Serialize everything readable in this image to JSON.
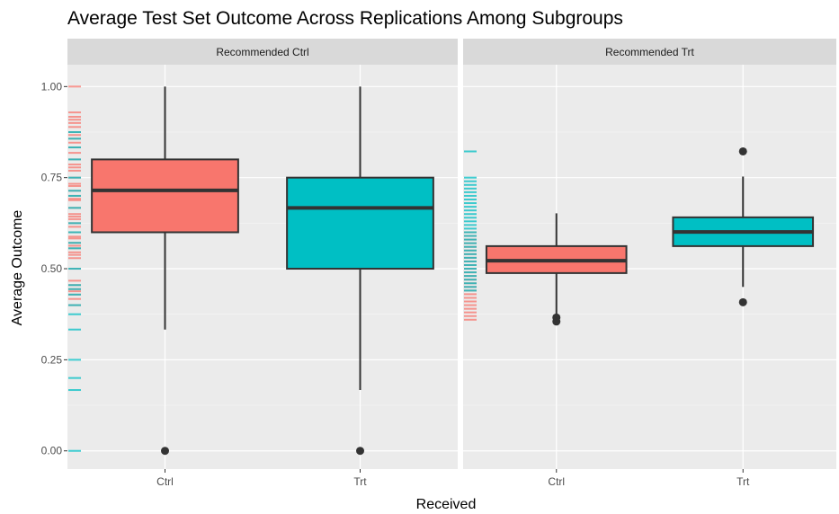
{
  "chart_data": {
    "type": "boxplot",
    "title": "Average Test Set Outcome Across Replications Among Subgroups",
    "xlabel": "Received",
    "ylabel": "Average Outcome",
    "ylim": [
      -0.05,
      1.06
    ],
    "yticks": [
      0.0,
      0.25,
      0.5,
      0.75,
      1.0
    ],
    "ytick_labels": [
      "0.00",
      "0.25",
      "0.50",
      "0.75",
      "1.00"
    ],
    "categories": [
      "Ctrl",
      "Trt"
    ],
    "grid": true,
    "colors": {
      "Ctrl": "#f8766d",
      "Trt": "#00bfc4",
      "panel_bg": "#ebebeb",
      "strip_bg": "#d9d9d9"
    },
    "facets": [
      {
        "label": "Recommended Ctrl",
        "boxes": [
          {
            "category": "Ctrl",
            "min": 0.333,
            "q1": 0.6,
            "median": 0.715,
            "q3": 0.8,
            "max": 1.0,
            "outliers": [
              0.0
            ]
          },
          {
            "category": "Trt",
            "min": 0.167,
            "q1": 0.5,
            "median": 0.667,
            "q3": 0.75,
            "max": 1.0,
            "outliers": [
              0.0
            ]
          }
        ],
        "rug": {
          "Ctrl": [
            1.0,
            0.929,
            0.917,
            0.909,
            0.9,
            0.889,
            0.875,
            0.867,
            0.857,
            0.846,
            0.833,
            0.818,
            0.8,
            0.786,
            0.778,
            0.769,
            0.75,
            0.733,
            0.727,
            0.714,
            0.7,
            0.692,
            0.688,
            0.667,
            0.65,
            0.643,
            0.636,
            0.625,
            0.615,
            0.6,
            0.588,
            0.583,
            0.571,
            0.563,
            0.556,
            0.545,
            0.538,
            0.529,
            0.5,
            0.467,
            0.455,
            0.444,
            0.438,
            0.429,
            0.417,
            0.4
          ],
          "Trt": [
            0.875,
            0.857,
            0.833,
            0.8,
            0.75,
            0.714,
            0.7,
            0.667,
            0.625,
            0.6,
            0.571,
            0.556,
            0.5,
            0.455,
            0.444,
            0.429,
            0.4,
            0.375,
            0.333,
            0.25,
            0.2,
            0.167,
            0.0
          ]
        }
      },
      {
        "label": "Recommended Trt",
        "boxes": [
          {
            "category": "Ctrl",
            "min": 0.375,
            "q1": 0.488,
            "median": 0.522,
            "q3": 0.562,
            "max": 0.652,
            "outliers": [
              0.366,
              0.355
            ]
          },
          {
            "category": "Trt",
            "min": 0.45,
            "q1": 0.562,
            "median": 0.601,
            "q3": 0.641,
            "max": 0.753,
            "outliers": [
              0.822,
              0.408
            ]
          }
        ],
        "rug": {
          "Ctrl": [
            0.6,
            0.59,
            0.58,
            0.57,
            0.56,
            0.55,
            0.54,
            0.53,
            0.52,
            0.51,
            0.5,
            0.49,
            0.48,
            0.47,
            0.46,
            0.45,
            0.44,
            0.43,
            0.42,
            0.41,
            0.4,
            0.39,
            0.38,
            0.37,
            0.36
          ],
          "Trt": [
            0.822,
            0.75,
            0.74,
            0.73,
            0.72,
            0.71,
            0.7,
            0.69,
            0.68,
            0.67,
            0.66,
            0.65,
            0.64,
            0.63,
            0.62,
            0.61,
            0.6,
            0.59,
            0.58,
            0.57,
            0.56,
            0.55,
            0.54,
            0.53,
            0.52,
            0.51,
            0.5,
            0.49,
            0.48,
            0.47,
            0.46,
            0.45,
            0.44
          ]
        }
      }
    ]
  }
}
